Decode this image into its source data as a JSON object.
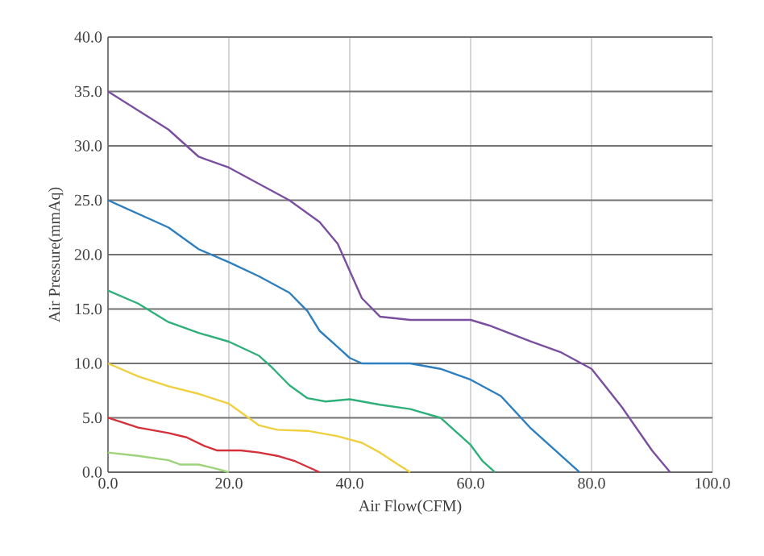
{
  "chart_data": {
    "type": "line",
    "xlabel": "Air Flow(CFM)",
    "ylabel": "Air Pressure(mmAq)",
    "xlim": [
      0,
      100
    ],
    "ylim": [
      0,
      40
    ],
    "xticks": [
      {
        "value": 0,
        "label": "0.0"
      },
      {
        "value": 20,
        "label": "20.0"
      },
      {
        "value": 40,
        "label": "40.0"
      },
      {
        "value": 60,
        "label": "60.0"
      },
      {
        "value": 80,
        "label": "80.0"
      },
      {
        "value": 100,
        "label": "100.0"
      }
    ],
    "yticks": [
      {
        "value": 0,
        "label": "0.0"
      },
      {
        "value": 5,
        "label": "5.0"
      },
      {
        "value": 10,
        "label": "10.0"
      },
      {
        "value": 15,
        "label": "15.0"
      },
      {
        "value": 20,
        "label": "20.0"
      },
      {
        "value": 25,
        "label": "25.0"
      },
      {
        "value": 30,
        "label": "30.0"
      },
      {
        "value": 35,
        "label": "35.0"
      },
      {
        "value": 40,
        "label": "40.0"
      }
    ],
    "grid": true,
    "marker": "none",
    "line_style": "solid",
    "series": [
      {
        "color": "#7b4fa0",
        "x": [
          0,
          10,
          13,
          15,
          20,
          30,
          35,
          38,
          40,
          42,
          45,
          50,
          60,
          63,
          70,
          75,
          80,
          85,
          90,
          93
        ],
        "values": [
          35,
          31.5,
          30,
          29,
          28,
          25,
          23,
          21,
          18.5,
          16,
          14.3,
          14,
          14,
          13.5,
          12,
          11,
          9.5,
          6,
          2,
          0
        ]
      },
      {
        "color": "#2e7fbf",
        "x": [
          0,
          10,
          15,
          20,
          25,
          30,
          33,
          35,
          38,
          40,
          42,
          45,
          50,
          55,
          60,
          65,
          70,
          75,
          78
        ],
        "values": [
          25,
          22.5,
          20.5,
          19.3,
          18,
          16.5,
          14.8,
          13,
          11.5,
          10.5,
          10,
          10,
          10,
          9.5,
          8.5,
          7,
          4,
          1.5,
          0
        ]
      },
      {
        "color": "#2fb07a",
        "x": [
          0,
          5,
          10,
          15,
          20,
          25,
          27,
          30,
          33,
          36,
          40,
          45,
          50,
          55,
          58,
          60,
          62,
          64
        ],
        "values": [
          16.7,
          15.5,
          13.8,
          12.8,
          12,
          10.7,
          9.7,
          8,
          6.8,
          6.5,
          6.7,
          6.2,
          5.8,
          5,
          3.5,
          2.5,
          1,
          0
        ]
      },
      {
        "color": "#f0d040",
        "x": [
          0,
          5,
          10,
          15,
          20,
          22,
          25,
          28,
          33,
          38,
          42,
          45,
          48,
          50
        ],
        "values": [
          10,
          8.8,
          7.9,
          7.2,
          6.3,
          5.5,
          4.3,
          3.9,
          3.8,
          3.3,
          2.7,
          1.8,
          0.7,
          0
        ]
      },
      {
        "color": "#d6303b",
        "x": [
          0,
          5,
          10,
          13,
          16,
          18,
          20,
          22,
          25,
          28,
          31,
          33,
          35
        ],
        "values": [
          5,
          4.1,
          3.6,
          3.2,
          2.4,
          2,
          2,
          2,
          1.8,
          1.5,
          1,
          0.5,
          0
        ]
      },
      {
        "color": "#9dd37a",
        "x": [
          0,
          5,
          10,
          12,
          15,
          18,
          20
        ],
        "values": [
          1.8,
          1.5,
          1.1,
          0.7,
          0.7,
          0.3,
          0
        ]
      }
    ]
  }
}
